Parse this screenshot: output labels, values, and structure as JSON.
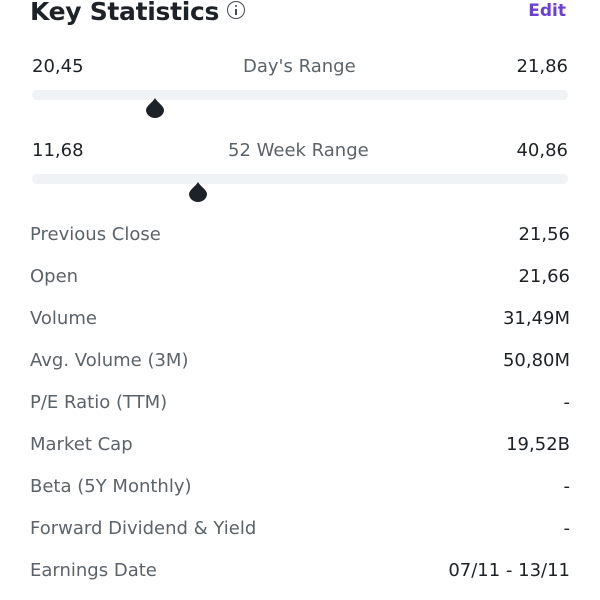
{
  "header": {
    "title": "Key Statistics",
    "edit_label": "Edit",
    "accent_color": "#6b3fd6"
  },
  "days_range": {
    "label": "Day's Range",
    "low": "20,45",
    "high": "21,86",
    "marker_fraction": 0.23
  },
  "week52_range": {
    "label": "52 Week Range",
    "low": "11,68",
    "high": "40,86",
    "marker_fraction": 0.31
  },
  "stats": [
    {
      "label": "Previous Close",
      "value": "21,56"
    },
    {
      "label": "Open",
      "value": "21,66"
    },
    {
      "label": "Volume",
      "value": "31,49M"
    },
    {
      "label": "Avg. Volume (3M)",
      "value": "50,80M"
    },
    {
      "label": "P/E Ratio (TTM)",
      "value": "-"
    },
    {
      "label": "Market Cap",
      "value": "19,52B"
    },
    {
      "label": "Beta (5Y Monthly)",
      "value": "-"
    },
    {
      "label": "Forward Dividend & Yield",
      "value": "-"
    },
    {
      "label": "Earnings Date",
      "value": "07/11 - 13/11"
    }
  ]
}
